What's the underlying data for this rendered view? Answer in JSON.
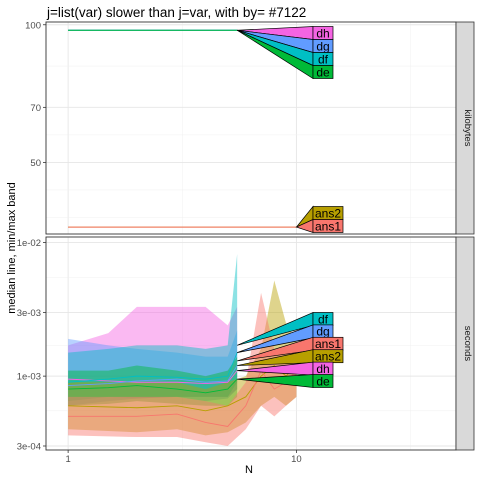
{
  "chart_data": {
    "type": "line",
    "title": "j=list(var) slower than j=var, with by= #7122",
    "xlabel": "N",
    "ylabel": "median line, min/max band",
    "x_scale": "log10",
    "xlim": [
      0.8,
      50
    ],
    "x_ticks": [
      {
        "value": 1,
        "label": "1"
      },
      {
        "value": 10,
        "label": "10"
      }
    ],
    "grid": true,
    "colors": {
      "ans1": "#F8766D",
      "ans2": "#B79F00",
      "de": "#00BA38",
      "df": "#00BFC4",
      "dg": "#619CFF",
      "dh": "#F564E3"
    },
    "panels": [
      {
        "strip": "kilobytes",
        "y_scale": "linear",
        "ylim": [
          24,
          101
        ],
        "y_ticks": [
          {
            "value": 100,
            "label": "100"
          },
          {
            "value": 70,
            "label": "70"
          },
          {
            "value": 50,
            "label": "50"
          }
        ],
        "series": [
          {
            "name": "dh",
            "x": [
              1,
              5.5
            ],
            "median": [
              98,
              98
            ]
          },
          {
            "name": "dg",
            "x": [
              1,
              5.5
            ],
            "median": [
              98,
              98
            ]
          },
          {
            "name": "df",
            "x": [
              1,
              5.5
            ],
            "median": [
              98,
              98
            ]
          },
          {
            "name": "de",
            "x": [
              1,
              5.5
            ],
            "median": [
              98,
              98
            ]
          },
          {
            "name": "ans2",
            "x": [
              1,
              10
            ],
            "median": [
              26.5,
              26.5
            ]
          },
          {
            "name": "ans1",
            "x": [
              1,
              10
            ],
            "median": [
              26.5,
              26.5
            ]
          }
        ],
        "labels": [
          {
            "name": "dh",
            "at_x": 5.5,
            "at_y": 98
          },
          {
            "name": "dg",
            "at_x": 5.5,
            "at_y": 98
          },
          {
            "name": "df",
            "at_x": 5.5,
            "at_y": 98
          },
          {
            "name": "de",
            "at_x": 5.5,
            "at_y": 98
          },
          {
            "name": "ans2",
            "at_x": 10,
            "at_y": 26.5
          },
          {
            "name": "ans1",
            "at_x": 10,
            "at_y": 26.5
          }
        ]
      },
      {
        "strip": "seconds",
        "y_scale": "log10",
        "ylim": [
          0.00028,
          0.011
        ],
        "y_ticks": [
          {
            "value": 0.01,
            "label": "1e-02"
          },
          {
            "value": 0.003,
            "label": "3e-03"
          },
          {
            "value": 0.001,
            "label": "1e-03"
          },
          {
            "value": 0.0003,
            "label": "3e-04"
          }
        ],
        "series": [
          {
            "name": "dh",
            "x": [
              1,
              1.5,
              2,
              3,
              4,
              5,
              5.5
            ],
            "median": [
              0.00095,
              0.00092,
              0.0009,
              0.0009,
              0.00088,
              0.0009,
              0.0011
            ],
            "min": [
              0.0007,
              0.0007,
              0.00068,
              0.0007,
              0.0007,
              0.0007,
              0.0008
            ],
            "max": [
              0.0017,
              0.0021,
              0.0033,
              0.0033,
              0.0033,
              0.0024,
              0.0033
            ]
          },
          {
            "name": "dg",
            "x": [
              1,
              1.5,
              2,
              3,
              4,
              5,
              5.5
            ],
            "median": [
              0.00085,
              0.00088,
              0.00092,
              0.00095,
              0.0009,
              0.00092,
              0.0012
            ],
            "min": [
              0.0006,
              0.00065,
              0.00068,
              0.0007,
              0.00065,
              0.00068,
              0.0008
            ],
            "max": [
              0.0019,
              0.0017,
              0.0016,
              0.0015,
              0.0014,
              0.0014,
              0.0022
            ]
          },
          {
            "name": "df",
            "x": [
              1,
              1.5,
              2,
              3,
              4,
              5,
              5.5
            ],
            "median": [
              0.0009,
              0.00095,
              0.001,
              0.00098,
              0.00095,
              0.001,
              0.0015
            ],
            "min": [
              0.00065,
              0.0007,
              0.0007,
              0.0007,
              0.0007,
              0.0007,
              0.0009
            ],
            "max": [
              0.0015,
              0.0016,
              0.0017,
              0.0017,
              0.0016,
              0.0017,
              0.0082
            ]
          },
          {
            "name": "de",
            "x": [
              1,
              1.5,
              2,
              3,
              4,
              5,
              5.5
            ],
            "median": [
              0.0008,
              0.00082,
              0.00085,
              0.0008,
              0.00075,
              0.0008,
              0.00095
            ],
            "min": [
              0.0006,
              0.00062,
              0.00065,
              0.00062,
              0.0006,
              0.0006,
              0.0007
            ],
            "max": [
              0.0011,
              0.0011,
              0.0012,
              0.0011,
              0.001,
              0.0011,
              0.0014
            ]
          },
          {
            "name": "ans2",
            "x": [
              1,
              2,
              3,
              4,
              5,
              6,
              7,
              8,
              9,
              10
            ],
            "median": [
              0.0006,
              0.00058,
              0.0006,
              0.00055,
              0.0006,
              0.0007,
              0.001,
              0.0012,
              0.001,
              0.0012
            ],
            "min": [
              0.0004,
              0.00038,
              0.0004,
              0.00036,
              0.00038,
              0.00045,
              0.0006,
              0.0007,
              0.0006,
              0.0007
            ],
            "max": [
              0.0009,
              0.0009,
              0.0009,
              0.0008,
              0.0009,
              0.001,
              0.0016,
              0.0052,
              0.0025,
              0.0018
            ]
          },
          {
            "name": "ans1",
            "x": [
              1,
              2,
              3,
              4,
              5,
              6,
              7,
              8,
              9,
              10
            ],
            "median": [
              0.0005,
              0.0005,
              0.00052,
              0.00045,
              0.00042,
              0.0006,
              0.0011,
              0.0008,
              0.0009,
              0.0011
            ],
            "min": [
              0.00036,
              0.00035,
              0.00035,
              0.00032,
              0.0003,
              0.0004,
              0.0006,
              0.0005,
              0.0006,
              0.0007
            ],
            "max": [
              0.0007,
              0.0007,
              0.0007,
              0.00065,
              0.0006,
              0.0009,
              0.0042,
              0.0016,
              0.0016,
              0.0018
            ]
          }
        ],
        "labels": [
          {
            "name": "df",
            "at_x": 5.5,
            "at_y": 0.0017
          },
          {
            "name": "dg",
            "at_x": 5.5,
            "at_y": 0.0015
          },
          {
            "name": "ans1",
            "at_x": 5.5,
            "at_y": 0.0013
          },
          {
            "name": "ans2",
            "at_x": 5.5,
            "at_y": 0.0012
          },
          {
            "name": "dh",
            "at_x": 5.5,
            "at_y": 0.0011
          },
          {
            "name": "de",
            "at_x": 5.5,
            "at_y": 0.00095
          }
        ]
      }
    ]
  }
}
